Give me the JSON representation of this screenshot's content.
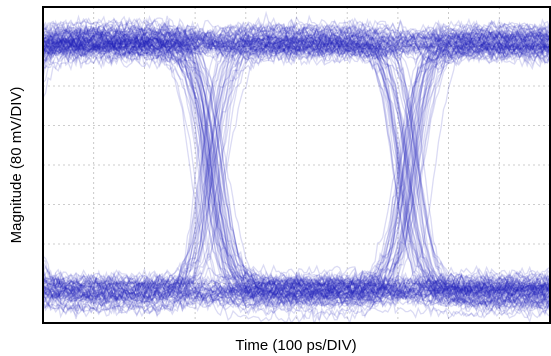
{
  "chart_data": {
    "type": "scatter",
    "subtype": "eye-diagram",
    "title": "",
    "xlabel": "Time (100 ps/DIV)",
    "ylabel": "Magnitude (80 mV/DIV)",
    "x_divisions": 10,
    "y_divisions": 8,
    "xlim": [
      0,
      10
    ],
    "ylim": [
      -4,
      4
    ],
    "grid": true,
    "legend": "none",
    "trace_color": "#1d1db8",
    "crossing_times_div": [
      3.3,
      7.2
    ],
    "eye_center_times_div": [
      1.3,
      5.3,
      9.2
    ],
    "high_level_div": 3.1,
    "low_level_div": -3.2,
    "high_band_width_div": 0.45,
    "low_band_width_div": 0.5,
    "eye_opening_div": 2.0
  }
}
